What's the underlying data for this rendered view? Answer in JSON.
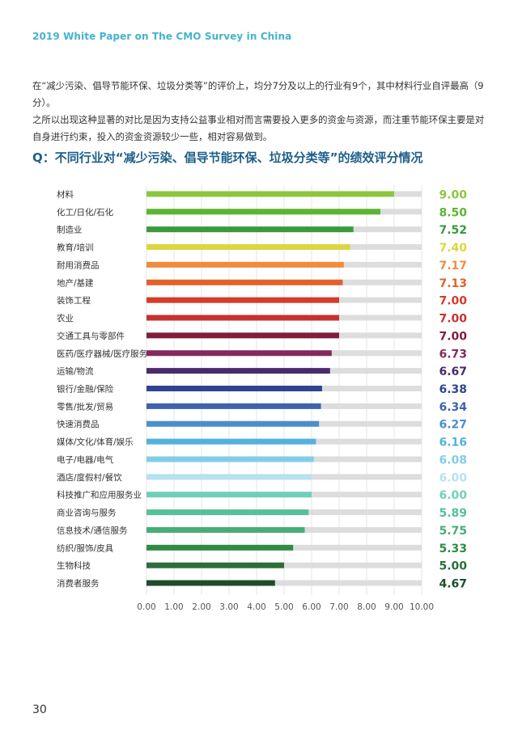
{
  "header": "2019 White Paper on The CMO Survey in China",
  "intro": {
    "line1": "在“减少污染、倡导节能环保、垃圾分类等”的评价上，均分7分及以上的行业有9个，其中材料行业自评最高（9分）。",
    "line2": "之所以出现这种显著的对比是因为支持公益事业相对而言需要投入更多的资金与资源，而注重节能环保主要是对自身进行约束，投入的资金资源较少一些，相对容易做到。"
  },
  "question": "Q：不同行业对“减少污染、倡导节能环保、垃圾分类等”的绩效评分情况",
  "page_number": "30",
  "chart_data": {
    "type": "bar",
    "orientation": "horizontal",
    "categories": [
      "材料",
      "化工/日化/石化",
      "制造业",
      "教育/培训",
      "耐用消费品",
      "地产/基建",
      "装饰工程",
      "农业",
      "交通工具与零部件",
      "医药/医疗器械/医疗服务",
      "运输/物流",
      "银行/金融/保险",
      "零售/批发/贸易",
      "快速消费品",
      "媒体/文化/体育/娱乐",
      "电子/电器/电气",
      "酒店/度假村/餐饮",
      "科技推广和应用服务业",
      "商业咨询与服务",
      "信息技术/通信服务",
      "纺织/服饰/皮具",
      "生物科技",
      "消费者服务"
    ],
    "values": [
      9.0,
      8.5,
      7.52,
      7.4,
      7.17,
      7.13,
      7.0,
      7.0,
      7.0,
      6.73,
      6.67,
      6.38,
      6.34,
      6.27,
      6.16,
      6.08,
      6.0,
      6.0,
      5.89,
      5.75,
      5.33,
      5.0,
      4.67
    ],
    "value_labels": [
      "9.00",
      "8.50",
      "7.52",
      "7.40",
      "7.17",
      "7.13",
      "7.00",
      "7.00",
      "7.00",
      "6.73",
      "6.67",
      "6.38",
      "6.34",
      "6.27",
      "6.16",
      "6.08",
      "6.00",
      "6.00",
      "5.89",
      "5.75",
      "5.33",
      "5.00",
      "4.67"
    ],
    "colors": [
      "#8cc63f",
      "#5cb531",
      "#3a9a3c",
      "#dcd640",
      "#f28c3c",
      "#e3612c",
      "#d63a2a",
      "#c5322f",
      "#7f1d3f",
      "#832a5d",
      "#4a2a6c",
      "#2f4490",
      "#3f62b0",
      "#4a8fca",
      "#52b2df",
      "#80cde8",
      "#b7e2ef",
      "#6ed0b9",
      "#54c19a",
      "#46ae75",
      "#2f8a45",
      "#2b6e3a",
      "#1f4b2a"
    ],
    "xlim": [
      0,
      10
    ],
    "xticks": [
      "0.00",
      "1.00",
      "2.00",
      "3.00",
      "4.00",
      "5.00",
      "6.00",
      "7.00",
      "8.00",
      "9.00",
      "10.00"
    ],
    "grid": true,
    "background_bar_color": "#dddddd"
  }
}
